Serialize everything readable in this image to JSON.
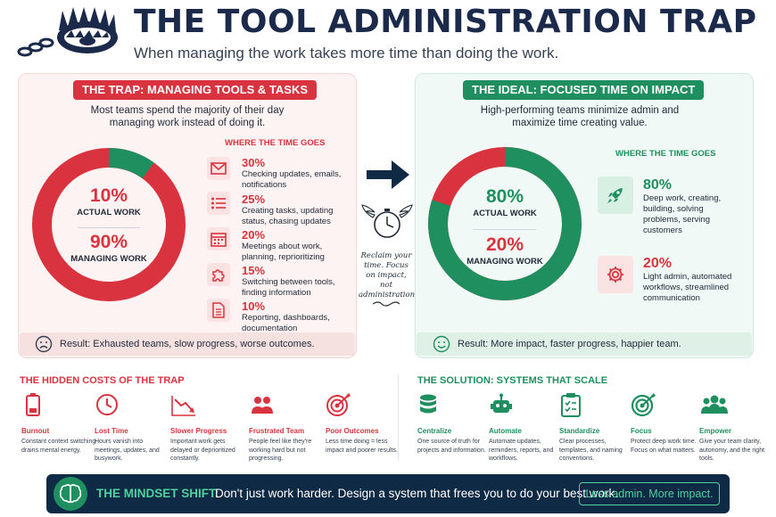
{
  "header": {
    "title": "THE TOOL ADMINISTRATION TRAP",
    "subtitle": "When managing the work takes more time than doing the work."
  },
  "trap": {
    "label": "THE TRAP: MANAGING TOOLS & TASKS",
    "intro": "Most teams spend the majority of their day managing work instead of doing it.",
    "where_title": "WHERE THE TIME GOES",
    "actual_pct": "10%",
    "actual_label": "ACTUAL WORK",
    "managing_pct": "90%",
    "managing_label": "MANAGING WORK",
    "actual_fraction": 0.1,
    "items": [
      {
        "pct": "30%",
        "desc": "Checking updates, emails, notifications",
        "icon": "envelope-icon"
      },
      {
        "pct": "25%",
        "desc": "Creating tasks, updating status, chasing updates",
        "icon": "checklist-icon"
      },
      {
        "pct": "20%",
        "desc": "Meetings about work, planning, reprioritizing",
        "icon": "calendar-icon"
      },
      {
        "pct": "15%",
        "desc": "Switching between tools, finding information",
        "icon": "puzzle-icon"
      },
      {
        "pct": "10%",
        "desc": "Reporting, dashboards, documentation",
        "icon": "document-icon"
      }
    ],
    "result": "Result: Exhausted teams, slow progress, worse outcomes."
  },
  "ideal": {
    "label": "THE IDEAL: FOCUSED TIME ON IMPACT",
    "intro": "High-performing teams minimize admin and maximize time creating value.",
    "where_title": "WHERE THE TIME GOES",
    "actual_pct": "80%",
    "actual_label": "ACTUAL WORK",
    "managing_pct": "20%",
    "managing_label": "MANAGING WORK",
    "actual_fraction": 0.8,
    "items": [
      {
        "pct": "80%",
        "desc": "Deep work, creating, building, solving problems, serving customers",
        "icon": "rocket-icon"
      },
      {
        "pct": "20%",
        "desc": "Light admin, automated workflows, streamlined communication",
        "icon": "gear-icon"
      }
    ],
    "result": "Result: More impact, faster progress, happier team."
  },
  "middle": {
    "reclaim": "Reclaim your time. Focus on impact, not administration."
  },
  "hidden_costs": {
    "title": "THE HIDDEN COSTS OF THE TRAP",
    "items": [
      {
        "title": "Burnout",
        "desc": "Constant context switching drains mental energy.",
        "icon": "battery-icon"
      },
      {
        "title": "Lost Time",
        "desc": "Hours vanish into meetings, updates, and busywork.",
        "icon": "clock-icon"
      },
      {
        "title": "Slower Progress",
        "desc": "Important work gets delayed or deprioritized constantly.",
        "icon": "trend-down-icon"
      },
      {
        "title": "Frustrated Team",
        "desc": "People feel like they're working hard but not progressing.",
        "icon": "people-icon"
      },
      {
        "title": "Poor Outcomes",
        "desc": "Less time doing = less impact and poorer results.",
        "icon": "target-icon"
      }
    ]
  },
  "solution": {
    "title": "THE SOLUTION: SYSTEMS THAT SCALE",
    "items": [
      {
        "title": "Centralize",
        "desc": "One source of truth for projects and information.",
        "icon": "database-icon"
      },
      {
        "title": "Automate",
        "desc": "Automate updates, reminders, reports, and workflows.",
        "icon": "robot-icon"
      },
      {
        "title": "Standardize",
        "desc": "Clear processes, templates, and naming conventions.",
        "icon": "clipboard-icon"
      },
      {
        "title": "Focus",
        "desc": "Protect deep work time. Focus on what matters.",
        "icon": "target-icon"
      },
      {
        "title": "Empower",
        "desc": "Give your team clarity, autonomy, and the right tools.",
        "icon": "team-icon"
      }
    ]
  },
  "banner": {
    "key": "THE MINDSET SHIFT:",
    "text": "Don't just work harder. Design a system that frees you to do your best work.",
    "cta": "Less admin. More impact."
  },
  "colors": {
    "red": "#d9333f",
    "green": "#1f8f5f",
    "navy": "#0f2a44"
  }
}
